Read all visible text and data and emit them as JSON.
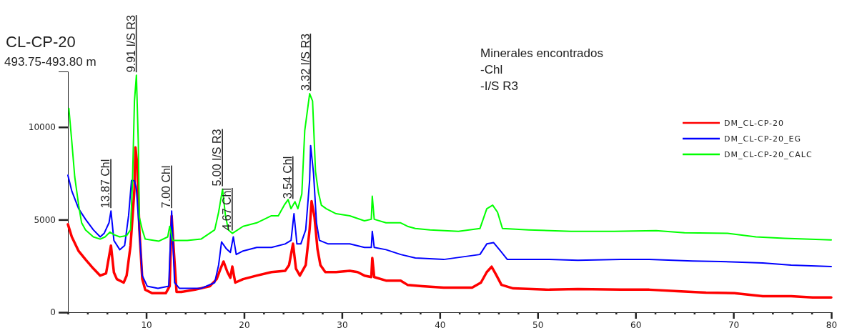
{
  "chart_data": {
    "type": "line",
    "title": "CL-CP-20",
    "subtitle": "493.75-493.80 m",
    "annotations": [
      {
        "text": "13.87 Chl",
        "x": 6.4,
        "y": 5470
      },
      {
        "text": "9.91 I/S R3",
        "x": 9.0,
        "y": 12800
      },
      {
        "text": "7.00 Chl",
        "x": 12.6,
        "y": 5470
      },
      {
        "text": "5.00 I/S R3",
        "x": 17.8,
        "y": 6650
      },
      {
        "text": "4.67 Chl",
        "x": 18.8,
        "y": 4260
      },
      {
        "text": "3.54 Chl",
        "x": 25.0,
        "y": 5970
      },
      {
        "text": "3.32 I/S R3",
        "x": 26.8,
        "y": 11800
      },
      "Minerales encontrados",
      "-Chl",
      "-I/S R3"
    ],
    "xticks": [
      {
        "value": 2,
        "label": null
      },
      {
        "value": 4,
        "label": null
      },
      {
        "value": 6,
        "label": null
      },
      {
        "value": 8,
        "label": null
      },
      10,
      {
        "value": 12,
        "label": null
      },
      {
        "value": 14,
        "label": null
      },
      {
        "value": 16,
        "label": null
      },
      {
        "value": 18,
        "label": null
      },
      20,
      {
        "value": 22,
        "label": null
      },
      {
        "value": 24,
        "label": null
      },
      {
        "value": 26,
        "label": null
      },
      {
        "value": 28,
        "label": null
      },
      30,
      {
        "value": 32,
        "label": null
      },
      {
        "value": 34,
        "label": null
      },
      {
        "value": 36,
        "label": null
      },
      {
        "value": 38,
        "label": null
      },
      40,
      {
        "value": 42,
        "label": null
      },
      {
        "value": 44,
        "label": null
      },
      {
        "value": 46,
        "label": null
      },
      {
        "value": 48,
        "label": null
      },
      50,
      {
        "value": 52,
        "label": null
      },
      {
        "value": 54,
        "label": null
      },
      {
        "value": 56,
        "label": null
      },
      {
        "value": 58,
        "label": null
      },
      60,
      {
        "value": 62,
        "label": null
      },
      {
        "value": 64,
        "label": null
      },
      {
        "value": 66,
        "label": null
      },
      {
        "value": 68,
        "label": null
      },
      70,
      {
        "value": 72,
        "label": null
      },
      {
        "value": 74,
        "label": null
      },
      {
        "value": 76,
        "label": null
      },
      {
        "value": 78,
        "label": null
      },
      80
    ],
    "xlim": [
      2,
      80
    ],
    "ylim": [
      0,
      13000
    ],
    "yticks": [
      0,
      5000,
      10000
    ],
    "legend": "top right",
    "series": [
      {
        "name": "DM_CL-CP-20",
        "color": "#ff0000",
        "x": [
          2.0,
          2.4,
          3.1,
          3.8,
          4.6,
          5.3,
          5.9,
          6.4,
          6.7,
          7.0,
          7.7,
          8.0,
          8.4,
          8.8,
          8.9,
          9.1,
          9.3,
          9.6,
          9.9,
          10.6,
          11.3,
          12.0,
          12.4,
          12.6,
          12.8,
          13.1,
          13.6,
          15.0,
          16.5,
          17.2,
          17.6,
          17.9,
          18.3,
          18.6,
          18.8,
          19.1,
          19.9,
          21.3,
          22.8,
          24.2,
          24.6,
          25.0,
          25.3,
          25.7,
          26.3,
          26.7,
          26.9,
          27.2,
          27.5,
          27.8,
          28.3,
          29.4,
          30.8,
          31.6,
          32.3,
          33.0,
          33.1,
          33.3,
          34.5,
          36.0,
          36.7,
          38.2,
          40.4,
          43.3,
          44.2,
          44.8,
          45.3,
          45.8,
          46.3,
          47.5,
          51.2,
          54.1,
          58.5,
          61.4,
          64.3,
          67.2,
          70.1,
          73.0,
          75.9,
          78.1,
          80.0
        ],
        "values": [
          4750,
          4070,
          3300,
          2850,
          2360,
          1980,
          2100,
          3600,
          2150,
          1790,
          1600,
          1980,
          3600,
          6650,
          8900,
          7900,
          4480,
          1790,
          1220,
          1030,
          1030,
          1030,
          1410,
          5200,
          3500,
          1100,
          1100,
          1220,
          1410,
          1790,
          2360,
          2740,
          2170,
          1860,
          2470,
          1600,
          1790,
          1980,
          2170,
          2240,
          2550,
          3700,
          2360,
          1980,
          2550,
          4480,
          6000,
          5130,
          3420,
          2550,
          2170,
          2170,
          2240,
          2170,
          1980,
          1900,
          2930,
          1900,
          1710,
          1710,
          1480,
          1410,
          1330,
          1330,
          1600,
          2170,
          2460,
          1980,
          1480,
          1290,
          1220,
          1250,
          1220,
          1220,
          1140,
          1060,
          1030,
          870,
          870,
          800,
          800
        ]
      },
      {
        "name": "DM_CL-CP-20_EG",
        "color": "#0000ff",
        "x": [
          2.0,
          2.4,
          3.1,
          3.8,
          4.6,
          5.3,
          5.7,
          6.2,
          6.4,
          6.7,
          7.3,
          7.8,
          8.2,
          8.5,
          8.8,
          9.0,
          9.3,
          9.6,
          10.1,
          11.2,
          12.3,
          12.6,
          12.9,
          13.4,
          15.6,
          17.0,
          17.4,
          17.7,
          18.2,
          18.6,
          18.9,
          19.2,
          19.9,
          21.3,
          22.8,
          24.2,
          24.8,
          25.1,
          25.4,
          25.8,
          26.3,
          26.7,
          26.8,
          27.1,
          27.4,
          27.7,
          28.6,
          30.8,
          32.3,
          33.0,
          33.1,
          33.3,
          34.5,
          36.0,
          37.5,
          40.4,
          44.1,
          44.8,
          45.5,
          46.2,
          46.9,
          51.2,
          54.1,
          58.5,
          61.4,
          65.8,
          68.7,
          73.0,
          75.9,
          80.0
        ],
        "values": [
          7400,
          6540,
          5590,
          5020,
          4450,
          4070,
          4260,
          4830,
          5470,
          3880,
          3380,
          3610,
          5210,
          7120,
          7100,
          6650,
          4370,
          1980,
          1410,
          1290,
          1410,
          5470,
          1600,
          1290,
          1290,
          1600,
          2550,
          3800,
          3420,
          3230,
          4070,
          3120,
          3310,
          3500,
          3500,
          3690,
          3880,
          5320,
          3690,
          3690,
          4450,
          7120,
          9000,
          7500,
          4830,
          3880,
          3690,
          3690,
          3500,
          3500,
          4370,
          3500,
          3380,
          3120,
          2930,
          2850,
          3120,
          3690,
          3760,
          3310,
          2850,
          2850,
          2810,
          2850,
          2850,
          2770,
          2740,
          2660,
          2550,
          2470
        ]
      },
      {
        "name": "DM_CL-CP-20_CALC",
        "color": "#00ff00",
        "x": [
          2.1,
          2.4,
          2.7,
          3.1,
          3.4,
          3.8,
          4.6,
          5.3,
          5.8,
          6.3,
          6.7,
          7.3,
          8.0,
          8.4,
          8.6,
          8.8,
          9.0,
          9.2,
          9.3,
          9.6,
          9.9,
          11.3,
          12.2,
          12.4,
          12.7,
          14.2,
          15.6,
          17.0,
          17.4,
          17.8,
          18.1,
          18.4,
          18.8,
          19.9,
          21.3,
          22.8,
          23.5,
          24.1,
          24.5,
          24.8,
          25.2,
          25.5,
          25.9,
          26.2,
          26.7,
          27.0,
          27.3,
          27.6,
          27.9,
          28.4,
          29.4,
          30.8,
          32.3,
          33.0,
          33.1,
          33.3,
          34.5,
          36.0,
          36.7,
          37.5,
          39.0,
          41.9,
          44.1,
          44.8,
          45.4,
          45.9,
          46.4,
          49.1,
          53.4,
          57.8,
          62.1,
          65.0,
          69.4,
          72.3,
          75.2,
          80.0
        ],
        "values": [
          11000,
          9200,
          7300,
          5780,
          4830,
          4450,
          4070,
          3950,
          4070,
          4330,
          4190,
          4070,
          4140,
          4450,
          7100,
          11400,
          12800,
          9000,
          5130,
          4450,
          3950,
          3840,
          4070,
          4640,
          3880,
          3880,
          3950,
          4450,
          5400,
          6650,
          5210,
          4450,
          4260,
          4640,
          4830,
          5210,
          5210,
          5780,
          6080,
          5590,
          5970,
          5590,
          6380,
          9800,
          11800,
          11400,
          7600,
          6460,
          5780,
          5590,
          5320,
          5210,
          4940,
          5020,
          6270,
          5020,
          4830,
          4830,
          4640,
          4520,
          4450,
          4370,
          4520,
          5590,
          5780,
          5400,
          4520,
          4450,
          4370,
          4370,
          4410,
          4290,
          4260,
          4070,
          3990,
          3910
        ]
      }
    ]
  }
}
